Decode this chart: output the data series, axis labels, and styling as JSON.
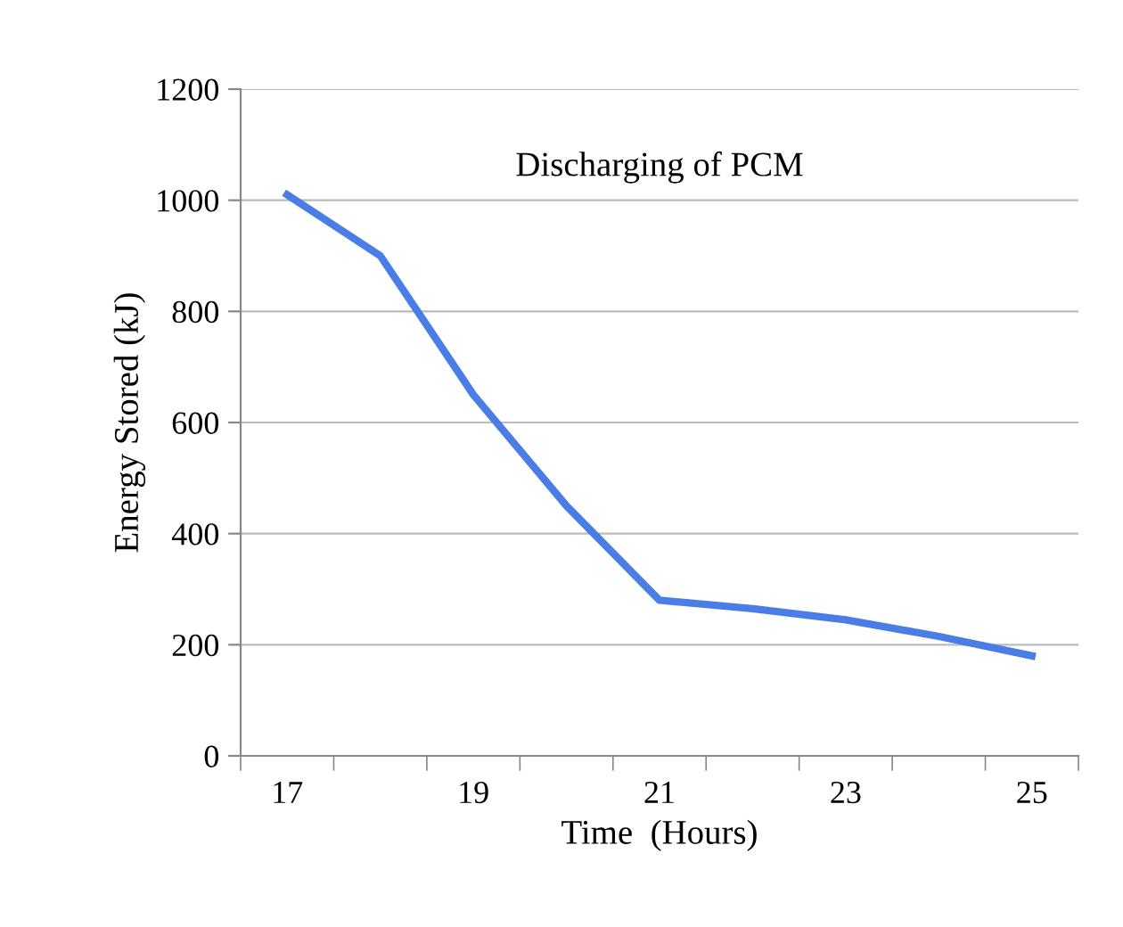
{
  "chart_data": {
    "type": "line",
    "title": "Discharging of PCM",
    "xlabel": "Time  (Hours)",
    "ylabel": "Energy Stored (kJ)",
    "categories": [
      "17",
      null,
      "19",
      null,
      "21",
      null,
      "23",
      null,
      "25"
    ],
    "series": [
      {
        "color": "#4a7ee6",
        "values": [
          1010,
          900,
          650,
          450,
          280,
          265,
          245,
          215,
          180
        ]
      }
    ],
    "ylim": [
      0,
      1200
    ],
    "yticks": [
      0,
      200,
      400,
      600,
      800,
      1000,
      1200
    ],
    "grid": "y",
    "legend": false,
    "marker": "none",
    "line_style": "solid"
  }
}
